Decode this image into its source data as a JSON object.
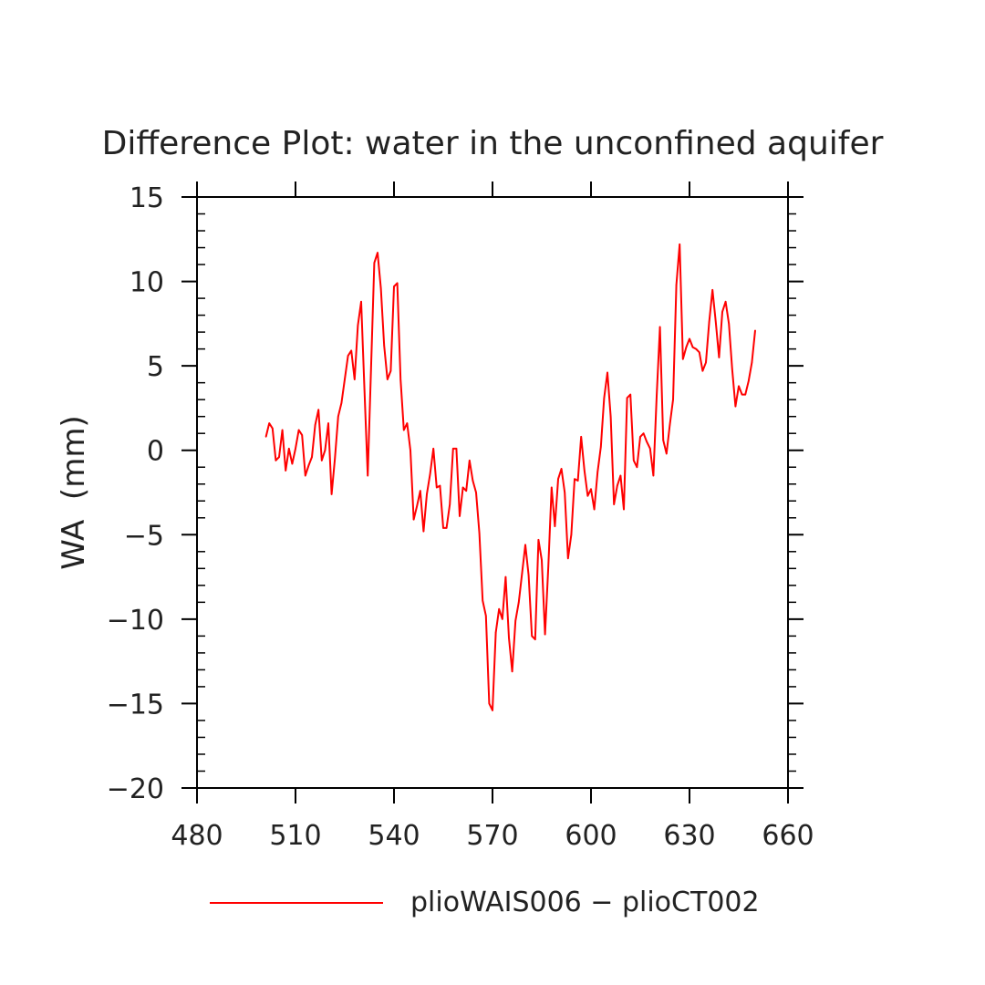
{
  "chart_data": {
    "type": "line",
    "title": "Difference Plot: water in the unconfined aquifer",
    "xlabel": "",
    "ylabel": "WA  (mm)",
    "xlim": [
      480,
      660
    ],
    "ylim": [
      -20,
      15
    ],
    "xticks": [
      "480",
      "510",
      "540",
      "570",
      "600",
      "630",
      "660"
    ],
    "yticks": [
      "15",
      "10",
      "5",
      "0",
      "−5",
      "−10",
      "−15",
      "−20"
    ],
    "xtick_values": [
      480,
      510,
      540,
      570,
      600,
      630,
      660
    ],
    "ytick_values": [
      15,
      10,
      5,
      0,
      -5,
      -10,
      -15,
      -20
    ],
    "grid": false,
    "legend_position": "bottom",
    "series": [
      {
        "name": "plioWAIS006 − plioCT002",
        "color": "#ff0000",
        "x": [
          501,
          502,
          503,
          504,
          505,
          506,
          507,
          508,
          509,
          510,
          511,
          512,
          513,
          514,
          515,
          516,
          517,
          518,
          519,
          520,
          521,
          522,
          523,
          524,
          525,
          526,
          527,
          528,
          529,
          530,
          531,
          532,
          533,
          534,
          535,
          536,
          537,
          538,
          539,
          540,
          541,
          542,
          543,
          544,
          545,
          546,
          547,
          548,
          549,
          550,
          551,
          552,
          553,
          554,
          555,
          556,
          557,
          558,
          559,
          560,
          561,
          562,
          563,
          564,
          565,
          566,
          567,
          568,
          569,
          570,
          571,
          572,
          573,
          574,
          575,
          576,
          577,
          578,
          579,
          580,
          581,
          582,
          583,
          584,
          585,
          586,
          587,
          588,
          589,
          590,
          591,
          592,
          593,
          594,
          595,
          596,
          597,
          598,
          599,
          600,
          601,
          602,
          603,
          604,
          605,
          606,
          607,
          608,
          609,
          610,
          611,
          612,
          613,
          614,
          615,
          616,
          617,
          618,
          619,
          620,
          621,
          622,
          623,
          624,
          625,
          626,
          627,
          628,
          629,
          630,
          631,
          632,
          633,
          634,
          635,
          636,
          637,
          638,
          639,
          640,
          641,
          642,
          643,
          644,
          645,
          646,
          647,
          648,
          649,
          650
        ],
        "values": [
          0.8,
          1.6,
          1.3,
          -0.6,
          -0.4,
          1.2,
          -1.2,
          0.1,
          -0.8,
          0.1,
          1.2,
          0.9,
          -1.5,
          -0.9,
          -0.4,
          1.5,
          2.4,
          -0.6,
          0.0,
          1.6,
          -2.6,
          -0.5,
          2.0,
          2.8,
          4.2,
          5.6,
          5.9,
          4.2,
          7.4,
          8.8,
          3.6,
          -1.5,
          4.8,
          11.1,
          11.7,
          9.6,
          6.2,
          4.2,
          4.7,
          9.7,
          9.9,
          4.2,
          1.2,
          1.6,
          0.0,
          -4.1,
          -3.3,
          -2.4,
          -4.8,
          -2.6,
          -1.4,
          0.1,
          -2.2,
          -2.1,
          -4.6,
          -4.6,
          -3.2,
          0.1,
          0.1,
          -3.9,
          -2.2,
          -2.4,
          -0.6,
          -1.8,
          -2.5,
          -4.9,
          -8.9,
          -9.8,
          -15.0,
          -15.4,
          -10.8,
          -9.4,
          -10.0,
          -7.5,
          -11.1,
          -13.1,
          -10.1,
          -9.0,
          -7.3,
          -5.6,
          -7.4,
          -11.0,
          -11.2,
          -5.3,
          -6.5,
          -10.9,
          -6.9,
          -2.2,
          -4.5,
          -1.7,
          -1.1,
          -2.5,
          -6.4,
          -5.0,
          -1.7,
          -1.8,
          0.8,
          -1.2,
          -2.7,
          -2.3,
          -3.5,
          -1.3,
          0.2,
          3.1,
          4.6,
          2.0,
          -3.2,
          -2.1,
          -1.5,
          -3.5,
          3.1,
          3.3,
          -0.6,
          -1.0,
          0.8,
          1.0,
          0.5,
          0.1,
          -1.5,
          3.2,
          7.3,
          0.6,
          -0.2,
          1.5,
          3.0,
          9.8,
          12.2,
          5.4,
          6.1,
          6.6,
          6.1,
          6.0,
          5.8,
          4.7,
          5.2,
          7.6,
          9.5,
          7.6,
          5.5,
          8.2,
          8.8,
          7.5,
          4.8,
          2.6,
          3.8,
          3.3,
          3.3,
          4.1,
          5.2,
          7.1
        ]
      }
    ]
  }
}
